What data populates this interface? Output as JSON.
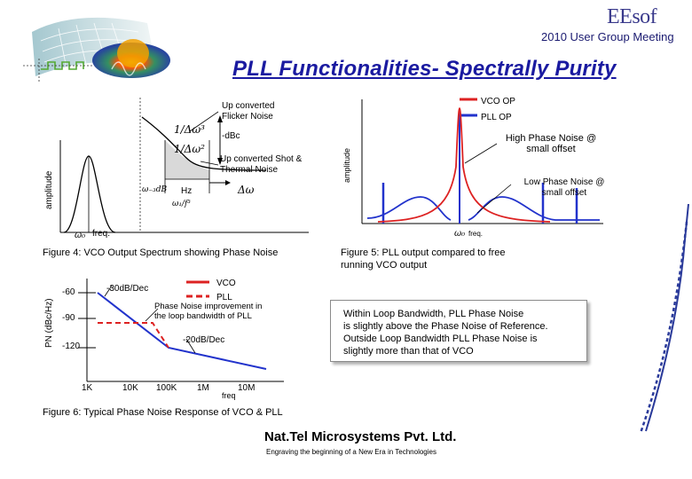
{
  "header": {
    "brand": "EEsof",
    "meeting": "2010 User Group Meeting",
    "title": "PLL Functionalities- Spectrally Purity"
  },
  "fig4": {
    "upconverted_flicker": [
      "Up converted",
      "Flicker Noise"
    ],
    "dbc": "-dBc",
    "upconverted_shot": [
      "Up converted Shot &",
      "Thermal Noise"
    ],
    "hz": "Hz",
    "freq": "freq.",
    "y_axis": "amplitude",
    "caption": "Figure 4: VCO Output Spectrum showing Phase Noise"
  },
  "fig5": {
    "legend": [
      "VCO OP",
      "PLL OP"
    ],
    "high_pn": [
      "High Phase Noise @",
      "small offset"
    ],
    "low_pn": [
      "Low Phase Noise @",
      "small offset"
    ],
    "freq": "freq.",
    "y_axis": "amplitude",
    "caption": [
      "Figure 5: PLL output compared to free",
      "running VCO output"
    ]
  },
  "fig6": {
    "y_axis": "PN (dBc/Hz)",
    "y_ticks": [
      "-60",
      "-90",
      "-120"
    ],
    "x_ticks": [
      "1K",
      "10K",
      "100K",
      "1M",
      "10M"
    ],
    "x_label": "freq",
    "slope1": "-30dB/Dec",
    "slope2": "-20dB/Dec",
    "legend": [
      "VCO",
      "PLL"
    ],
    "improvement": [
      "Phase Noise improvement in",
      "the loop bandwidth of PLL"
    ],
    "caption": "Figure 6: Typical Phase Noise Response of VCO & PLL"
  },
  "note": [
    "Within Loop Bandwidth, PLL Phase Noise",
    "is slightly above the Phase Noise of Reference.",
    "Outside Loop Bandwidth PLL Phase Noise is",
    "slightly more than that of VCO"
  ],
  "footer": {
    "company": "Nat.Tel Microsystems Pvt. Ltd.",
    "tagline": "Engraving the beginning of a New Era in Technologies"
  },
  "colors": {
    "title": "#1a1aa0",
    "vco": "#dd2222",
    "pll": "#2233cc"
  },
  "icons": [
    "logo-graphic-icon",
    "diagonal-swoosh-icon"
  ]
}
